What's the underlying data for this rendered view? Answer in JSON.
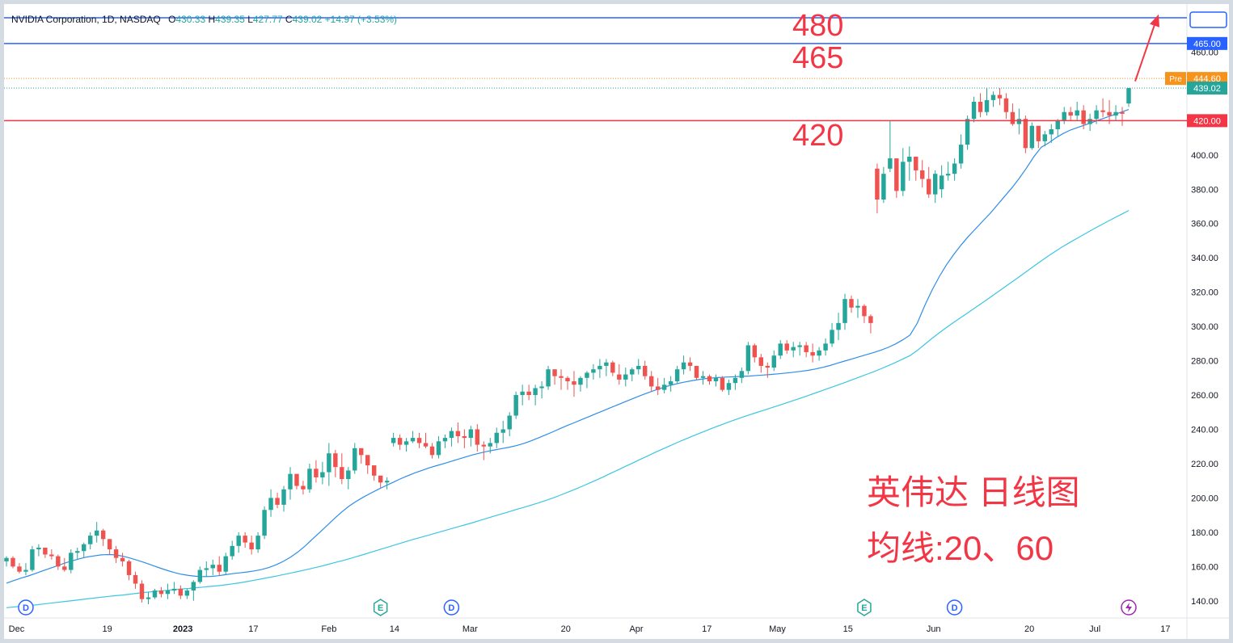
{
  "header": {
    "symbol": "NVIDIA Corporation, 1D, NASDAQ",
    "open_label": "O",
    "open": "430.33",
    "high_label": "H",
    "high": "439.35",
    "low_label": "L",
    "low": "427.77",
    "close_label": "C",
    "close": "439.02",
    "change": "+14.97 (+3.53%)"
  },
  "colors": {
    "up": "#26a69a",
    "down": "#ef5350",
    "ma20": "#2f8de8",
    "ma60": "#3cc6e0",
    "hline_blue": "#2962ff",
    "hline_red": "#f23645",
    "annotation": "#f23645",
    "pre": "#f7931a"
  },
  "chart_data": {
    "type": "candlestick",
    "title": "",
    "ylim": [
      130,
      488
    ],
    "y_ticks": [
      140,
      160,
      180,
      200,
      220,
      240,
      260,
      280,
      300,
      320,
      340,
      360,
      380,
      400,
      460
    ],
    "x_ticks": [
      {
        "label": "Dec",
        "date": "2022-12-01"
      },
      {
        "label": "19",
        "date": "2022-12-19"
      },
      {
        "label": "2023",
        "date": "2023-01-03"
      },
      {
        "label": "17",
        "date": "2023-01-17"
      },
      {
        "label": "Feb",
        "date": "2023-02-01"
      },
      {
        "label": "14",
        "date": "2023-02-14"
      },
      {
        "label": "Mar",
        "date": "2023-03-01"
      },
      {
        "label": "20",
        "date": "2023-03-20"
      },
      {
        "label": "Apr",
        "date": "2023-04-03"
      },
      {
        "label": "17",
        "date": "2023-04-17"
      },
      {
        "label": "May",
        "date": "2023-05-01"
      },
      {
        "label": "15",
        "date": "2023-05-15"
      },
      {
        "label": "Jun",
        "date": "2023-06-01"
      },
      {
        "label": "20",
        "date": "2023-06-20"
      },
      {
        "label": "Jul",
        "date": "2023-07-03"
      },
      {
        "label": "17",
        "date": "2023-07-17"
      }
    ],
    "candles": [
      [
        163,
        166,
        160,
        165
      ],
      [
        165,
        166,
        159,
        160
      ],
      [
        160,
        162,
        156,
        157
      ],
      [
        157,
        162,
        155,
        158
      ],
      [
        158,
        172,
        157,
        170
      ],
      [
        170,
        173,
        166,
        171
      ],
      [
        171,
        171,
        165,
        167
      ],
      [
        167,
        170,
        164,
        166
      ],
      [
        166,
        167,
        158,
        160
      ],
      [
        160,
        165,
        157,
        158
      ],
      [
        158,
        170,
        156,
        168
      ],
      [
        168,
        171,
        164,
        169
      ],
      [
        169,
        174,
        165,
        173
      ],
      [
        173,
        180,
        170,
        178
      ],
      [
        178,
        186,
        174,
        181
      ],
      [
        181,
        182,
        172,
        176
      ],
      [
        176,
        176,
        167,
        170
      ],
      [
        170,
        172,
        162,
        165
      ],
      [
        165,
        168,
        160,
        163
      ],
      [
        163,
        164,
        152,
        155
      ],
      [
        155,
        157,
        147,
        150
      ],
      [
        150,
        152,
        139,
        141
      ],
      [
        141,
        145,
        138,
        142
      ],
      [
        142,
        147,
        141,
        146
      ],
      [
        146,
        148,
        142,
        144
      ],
      [
        144,
        150,
        141,
        146
      ],
      [
        146,
        151,
        144,
        147
      ],
      [
        147,
        149,
        141,
        143
      ],
      [
        143,
        147,
        141,
        146
      ],
      [
        146,
        152,
        140,
        151
      ],
      [
        151,
        160,
        150,
        158
      ],
      [
        158,
        163,
        154,
        159
      ],
      [
        159,
        164,
        155,
        161
      ],
      [
        161,
        166,
        155,
        157
      ],
      [
        157,
        168,
        155,
        166
      ],
      [
        166,
        175,
        164,
        172
      ],
      [
        172,
        180,
        168,
        178
      ],
      [
        178,
        180,
        171,
        174
      ],
      [
        174,
        178,
        167,
        170
      ],
      [
        170,
        180,
        168,
        178
      ],
      [
        178,
        195,
        176,
        193
      ],
      [
        193,
        205,
        189,
        200
      ],
      [
        200,
        203,
        194,
        196
      ],
      [
        196,
        207,
        192,
        205
      ],
      [
        205,
        218,
        199,
        214
      ],
      [
        214,
        212,
        205,
        207
      ],
      [
        207,
        210,
        202,
        205
      ],
      [
        205,
        220,
        203,
        217
      ],
      [
        217,
        222,
        209,
        212
      ],
      [
        212,
        221,
        208,
        215
      ],
      [
        215,
        232,
        207,
        226
      ],
      [
        226,
        228,
        212,
        218
      ],
      [
        218,
        226,
        208,
        211
      ],
      [
        211,
        218,
        205,
        216
      ],
      [
        216,
        232,
        214,
        229
      ],
      [
        229,
        229,
        220,
        225
      ],
      [
        225,
        225,
        214,
        219
      ],
      [
        219,
        218,
        210,
        213
      ],
      [
        213,
        213,
        206,
        209
      ],
      [
        209,
        212,
        205,
        210
      ],
      [
        232,
        238,
        230,
        235
      ],
      [
        235,
        237,
        228,
        231
      ],
      [
        231,
        235,
        227,
        233
      ],
      [
        233,
        239,
        232,
        235
      ],
      [
        235,
        238,
        229,
        232
      ],
      [
        232,
        238,
        229,
        230
      ],
      [
        230,
        232,
        223,
        225
      ],
      [
        225,
        236,
        223,
        233
      ],
      [
        233,
        237,
        229,
        235
      ],
      [
        235,
        241,
        230,
        239
      ],
      [
        239,
        244,
        232,
        236
      ],
      [
        236,
        240,
        229,
        235
      ],
      [
        235,
        242,
        230,
        240
      ],
      [
        240,
        243,
        227,
        231
      ],
      [
        231,
        233,
        222,
        230
      ],
      [
        230,
        235,
        226,
        232
      ],
      [
        232,
        241,
        229,
        238
      ],
      [
        238,
        245,
        232,
        240
      ],
      [
        240,
        250,
        236,
        248
      ],
      [
        248,
        262,
        246,
        260
      ],
      [
        260,
        266,
        254,
        262
      ],
      [
        262,
        266,
        257,
        260
      ],
      [
        260,
        266,
        254,
        264
      ],
      [
        264,
        268,
        258,
        265
      ],
      [
        265,
        277,
        263,
        275
      ],
      [
        275,
        275,
        266,
        271
      ],
      [
        271,
        275,
        263,
        270
      ],
      [
        270,
        271,
        263,
        268
      ],
      [
        268,
        274,
        259,
        266
      ],
      [
        266,
        271,
        262,
        270
      ],
      [
        270,
        274,
        264,
        273
      ],
      [
        273,
        278,
        269,
        275
      ],
      [
        275,
        281,
        270,
        277
      ],
      [
        277,
        281,
        271,
        279
      ],
      [
        279,
        280,
        271,
        273
      ],
      [
        272,
        278,
        266,
        269
      ],
      [
        269,
        276,
        265,
        272
      ],
      [
        272,
        276,
        268,
        275
      ],
      [
        275,
        281,
        272,
        277
      ],
      [
        277,
        280,
        269,
        271
      ],
      [
        271,
        274,
        262,
        265
      ],
      [
        265,
        270,
        260,
        263
      ],
      [
        263,
        270,
        261,
        266
      ],
      [
        266,
        271,
        262,
        268
      ],
      [
        268,
        277,
        267,
        275
      ],
      [
        275,
        283,
        272,
        279
      ],
      [
        279,
        282,
        274,
        277
      ],
      [
        277,
        277,
        269,
        270
      ],
      [
        270,
        274,
        266,
        271
      ],
      [
        271,
        272,
        266,
        268
      ],
      [
        268,
        272,
        265,
        270
      ],
      [
        270,
        271,
        262,
        263
      ],
      [
        263,
        269,
        260,
        267
      ],
      [
        267,
        272,
        263,
        270
      ],
      [
        270,
        276,
        267,
        274
      ],
      [
        274,
        291,
        272,
        289
      ],
      [
        289,
        290,
        279,
        282
      ],
      [
        282,
        284,
        273,
        277
      ],
      [
        277,
        279,
        270,
        276
      ],
      [
        276,
        286,
        274,
        283
      ],
      [
        283,
        292,
        281,
        290
      ],
      [
        290,
        292,
        284,
        286
      ],
      [
        286,
        291,
        282,
        288
      ],
      [
        288,
        291,
        283,
        289
      ],
      [
        289,
        291,
        282,
        285
      ],
      [
        285,
        290,
        279,
        283
      ],
      [
        283,
        288,
        280,
        286
      ],
      [
        286,
        293,
        283,
        290
      ],
      [
        290,
        302,
        288,
        298
      ],
      [
        298,
        308,
        292,
        302
      ],
      [
        302,
        319,
        298,
        316
      ],
      [
        316,
        318,
        308,
        311
      ],
      [
        311,
        316,
        305,
        312
      ],
      [
        312,
        313,
        302,
        306
      ],
      [
        306,
        307,
        296,
        302
      ],
      [
        392,
        395,
        366,
        374
      ],
      [
        374,
        393,
        372,
        389
      ],
      [
        392,
        420,
        390,
        398
      ],
      [
        398,
        398,
        375,
        379
      ],
      [
        379,
        404,
        376,
        396
      ],
      [
        396,
        405,
        385,
        399
      ],
      [
        399,
        399,
        385,
        391
      ],
      [
        391,
        397,
        381,
        386
      ],
      [
        386,
        393,
        375,
        377
      ],
      [
        377,
        391,
        372,
        389
      ],
      [
        380,
        394,
        375,
        388
      ],
      [
        388,
        396,
        385,
        389
      ],
      [
        389,
        398,
        385,
        395
      ],
      [
        395,
        412,
        392,
        406
      ],
      [
        406,
        423,
        403,
        421
      ],
      [
        421,
        434,
        419,
        431
      ],
      [
        431,
        436,
        422,
        425
      ],
      [
        425,
        439,
        423,
        432
      ],
      [
        432,
        437,
        428,
        435
      ],
      [
        435,
        439,
        429,
        433
      ],
      [
        433,
        436,
        421,
        425
      ],
      [
        425,
        430,
        417,
        418
      ],
      [
        418,
        427,
        412,
        421
      ],
      [
        421,
        423,
        401,
        404
      ],
      [
        404,
        419,
        403,
        417
      ],
      [
        417,
        415,
        404,
        408
      ],
      [
        408,
        414,
        405,
        412
      ],
      [
        412,
        418,
        407,
        415
      ],
      [
        415,
        421,
        411,
        420
      ],
      [
        420,
        428,
        418,
        425
      ],
      [
        425,
        428,
        420,
        423
      ],
      [
        423,
        431,
        420,
        426
      ],
      [
        426,
        429,
        415,
        418
      ],
      [
        418,
        424,
        414,
        421
      ],
      [
        421,
        429,
        418,
        426
      ],
      [
        426,
        433,
        422,
        425
      ],
      [
        425,
        432,
        418,
        423
      ],
      [
        423,
        429,
        420,
        425
      ],
      [
        425,
        428,
        417,
        424
      ],
      [
        430,
        439,
        428,
        439
      ]
    ],
    "ma20": [
      150.3,
      151.8,
      153.2,
      154.5,
      156.0,
      157.5,
      159.0,
      160.5,
      162.0,
      163.3,
      164.5,
      165.5,
      166.2,
      166.8,
      167.0,
      166.8,
      166.0,
      164.9,
      163.6,
      162.2,
      160.7,
      159.2,
      157.8,
      156.5,
      155.5,
      154.8,
      154.3,
      154.1,
      154.2,
      154.6,
      155.2,
      155.8,
      156.3,
      156.8,
      157.4,
      158.2,
      159.4,
      161.0,
      163.0,
      165.5,
      168.5,
      172.0,
      176.0,
      180.0,
      184.0,
      188.0,
      191.8,
      195.2,
      198.0,
      200.5,
      202.8,
      205.0,
      207.0,
      209.0,
      211.0,
      212.8,
      214.5,
      216.0,
      217.5,
      218.8,
      220.0,
      221.3,
      222.6,
      223.9,
      225.1,
      226.2,
      227.2,
      228.0,
      228.8,
      229.6,
      230.5,
      231.8,
      233.3,
      235.0,
      236.8,
      238.6,
      240.5,
      242.3,
      244.0,
      245.8,
      247.5,
      249.3,
      251.0,
      252.8,
      254.5,
      256.3,
      258.0,
      259.7,
      261.3,
      262.8,
      264.2,
      265.5,
      266.6,
      267.5,
      268.3,
      269.0,
      269.6,
      270.0,
      270.3,
      270.5,
      270.7,
      270.9,
      271.1,
      271.4,
      271.7,
      272.0,
      272.4,
      272.8,
      273.3,
      273.8,
      274.4,
      275.2,
      276.1,
      277.2,
      278.5,
      279.8,
      281.0,
      282.3,
      283.5,
      284.8,
      286.2,
      287.8,
      289.8,
      292.2,
      295.0,
      302.0,
      312.0,
      321.0,
      329.0,
      336.0,
      342.0,
      347.5,
      352.5,
      357.0,
      361.5,
      366.0,
      371.0,
      376.0,
      381.0,
      386.5,
      392.5,
      399.0,
      404.5,
      407.0,
      410.0,
      412.5,
      414.5,
      416.0,
      417.5,
      419.0,
      420.5,
      422.0,
      423.5,
      425.0,
      426.5
    ],
    "ma60": [
      136.0,
      136.4,
      136.8,
      137.2,
      137.6,
      138.1,
      138.6,
      139.1,
      139.6,
      140.1,
      140.6,
      141.1,
      141.6,
      142.1,
      142.6,
      143.0,
      143.4,
      143.9,
      144.4,
      144.9,
      145.3,
      145.7,
      146.1,
      146.5,
      146.9,
      147.2,
      147.6,
      148.0,
      148.4,
      148.8,
      149.3,
      149.9,
      150.5,
      151.2,
      152.0,
      152.8,
      153.6,
      154.4,
      155.3,
      156.2,
      157.1,
      158.0,
      159.0,
      160.0,
      161.1,
      162.2,
      163.3,
      164.5,
      165.7,
      167.0,
      168.3,
      169.6,
      170.9,
      172.2,
      173.5,
      174.8,
      176.0,
      177.2,
      178.4,
      179.6,
      180.8,
      182.0,
      183.2,
      184.4,
      185.6,
      186.9,
      188.2,
      189.5,
      190.7,
      192.0,
      193.3,
      194.5,
      195.8,
      197.1,
      198.5,
      200.0,
      201.6,
      203.3,
      205.0,
      206.8,
      208.6,
      210.5,
      212.5,
      214.5,
      216.5,
      218.5,
      220.5,
      222.5,
      224.5,
      226.5,
      228.4,
      230.3,
      232.2,
      234.0,
      235.8,
      237.5,
      239.2,
      240.9,
      242.5,
      244.1,
      245.6,
      247.1,
      248.5,
      249.9,
      251.2,
      252.6,
      254.0,
      255.4,
      256.8,
      258.2,
      259.7,
      261.2,
      262.7,
      264.2,
      265.7,
      267.2,
      268.8,
      270.4,
      272.0,
      273.6,
      275.3,
      277.1,
      279.0,
      281.0,
      283.0,
      286.0,
      289.5,
      293.0,
      296.3,
      299.4,
      302.4,
      305.3,
      308.2,
      311.1,
      314.0,
      317.0,
      320.0,
      323.0,
      326.0,
      329.0,
      332.1,
      335.2,
      338.2,
      341.2,
      344.0,
      346.7,
      349.2,
      351.6,
      354.0,
      356.4,
      358.7,
      361.0,
      363.2,
      365.4,
      367.6
    ],
    "horizontal_lines": [
      {
        "value": 480,
        "color": "blue"
      },
      {
        "value": 465,
        "color": "blue",
        "label": "465.00"
      },
      {
        "value": 420,
        "color": "red",
        "label": "420.00"
      }
    ],
    "price_labels": {
      "pre_tag": "Pre",
      "pre_value": "444.60",
      "pre_level": 444.6,
      "last_value": "439.02",
      "last_level": 439.02
    },
    "annotations": {
      "level_480": "480",
      "level_465": "465",
      "level_420": "420",
      "title_line1": "英伟达 日线图",
      "title_line2": "均线:20、60"
    },
    "events": [
      {
        "letter": "D",
        "type": "dividend",
        "index": 3
      },
      {
        "letter": "E",
        "type": "earnings",
        "index": 58
      },
      {
        "letter": "D",
        "type": "dividend",
        "index": 69
      },
      {
        "letter": "E",
        "type": "earnings",
        "index": 133
      },
      {
        "letter": "D",
        "type": "dividend",
        "index": 147
      }
    ],
    "event_flash_icon": "lightning-icon"
  }
}
